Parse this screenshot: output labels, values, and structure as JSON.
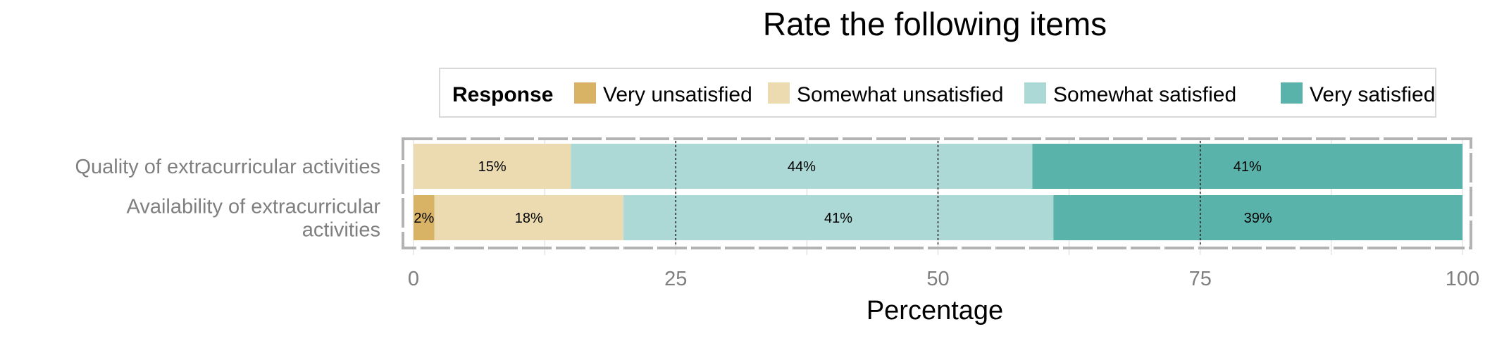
{
  "chart_data": {
    "type": "bar",
    "orientation": "horizontal",
    "stacked": true,
    "title": "Rate the following items",
    "xlabel": "Percentage",
    "ylabel": "",
    "xlim": [
      0,
      100
    ],
    "x_ticks": [
      0,
      25,
      50,
      75,
      100
    ],
    "grid": true,
    "legend": {
      "title": "Response",
      "placement": "top"
    },
    "categories": [
      "Quality of extracurricular activities",
      "Availability of extracurricular activities"
    ],
    "category_display_lines": [
      [
        "Quality of extracurricular activities"
      ],
      [
        "Availability of extracurricular",
        "activities"
      ]
    ],
    "series": [
      {
        "name": "Very unsatisfied",
        "color": "#d8b365",
        "values": [
          0,
          2
        ],
        "labels": [
          "",
          "2%"
        ]
      },
      {
        "name": "Somewhat unsatisfied",
        "color": "#ecdbb1",
        "values": [
          15,
          18
        ],
        "labels": [
          "15%",
          "18%"
        ]
      },
      {
        "name": "Somewhat satisfied",
        "color": "#acd9d6",
        "values": [
          44,
          41
        ],
        "labels": [
          "44%",
          "41%"
        ]
      },
      {
        "name": "Very satisfied",
        "color": "#5ab3ab",
        "values": [
          41,
          39
        ],
        "labels": [
          "41%",
          "39%"
        ]
      }
    ]
  }
}
